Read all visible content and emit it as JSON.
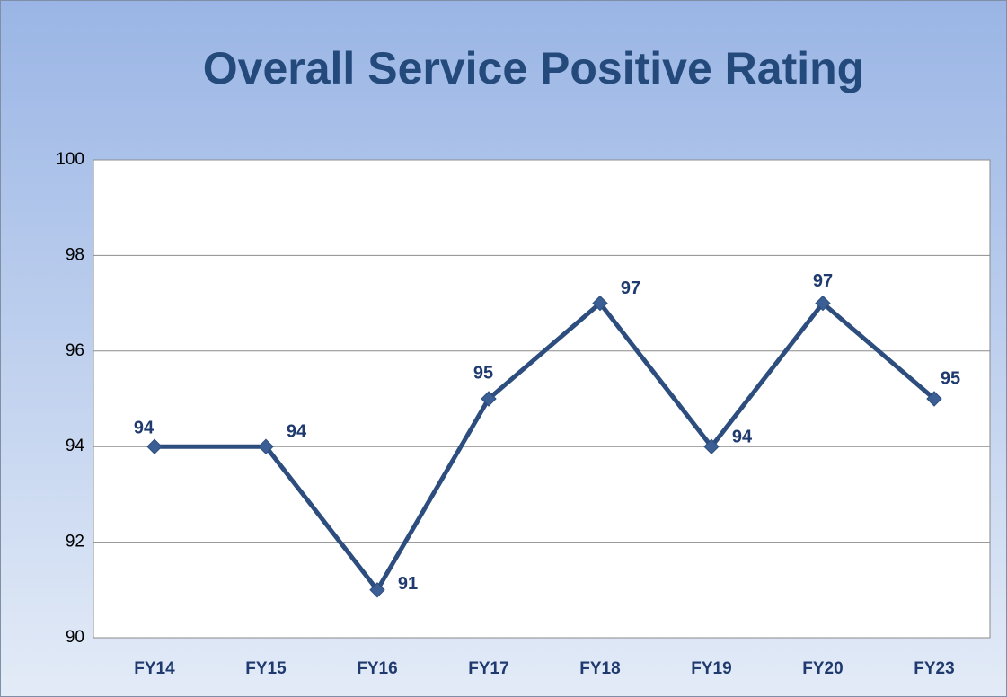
{
  "chart_data": {
    "type": "line",
    "title": "Overall Service Positive Rating",
    "categories": [
      "FY14",
      "FY15",
      "FY16",
      "FY17",
      "FY18",
      "FY19",
      "FY20",
      "FY23"
    ],
    "values": [
      94,
      94,
      91,
      95,
      97,
      94,
      97,
      95
    ],
    "color": "#2c4d7d",
    "ylim": [
      90,
      100
    ],
    "yticks": [
      90,
      92,
      94,
      96,
      98,
      100
    ],
    "grid": true
  }
}
